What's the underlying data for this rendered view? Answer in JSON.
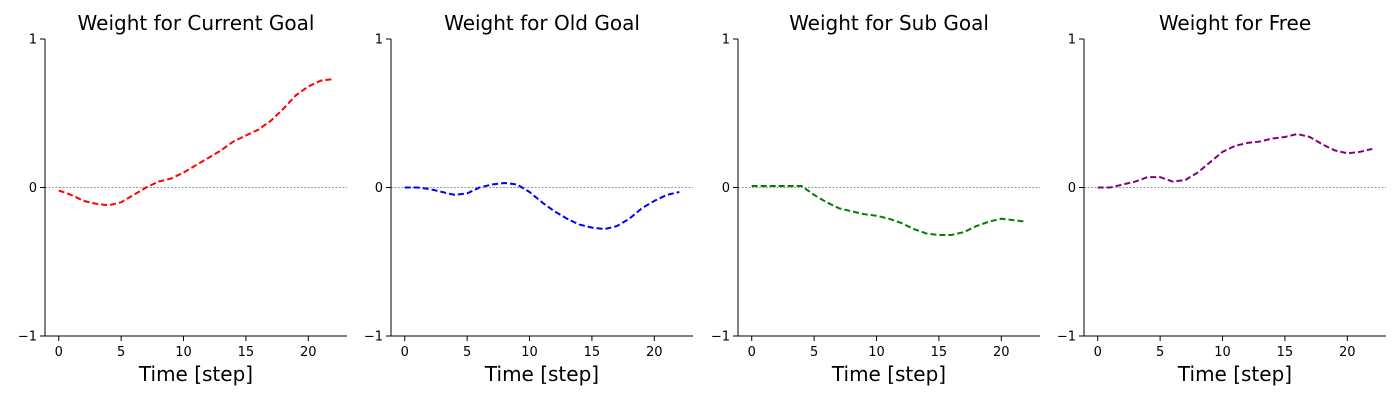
{
  "chart_data": [
    {
      "type": "line",
      "title": "Weight for Current Goal",
      "xlabel": "Time [step]",
      "ylabel": "",
      "xlim": [
        -1.1,
        23.1
      ],
      "ylim": [
        -1,
        1
      ],
      "xticks": [
        0,
        5,
        10,
        15,
        20
      ],
      "yticks": [
        -1,
        0,
        1
      ],
      "ytick_labels": [
        "−1",
        "0",
        "1"
      ],
      "reference_line": 0,
      "grid": false,
      "series": [
        {
          "color": "#ff0000",
          "line_style": "dashed",
          "x": [
            0,
            1,
            2,
            3,
            4,
            5,
            6,
            7,
            8,
            9,
            10,
            11,
            12,
            13,
            14,
            15,
            16,
            17,
            18,
            19,
            20,
            21,
            22
          ],
          "y": [
            -0.02,
            -0.05,
            -0.09,
            -0.11,
            -0.12,
            -0.1,
            -0.05,
            0.0,
            0.04,
            0.06,
            0.1,
            0.15,
            0.2,
            0.25,
            0.31,
            0.35,
            0.39,
            0.45,
            0.53,
            0.62,
            0.68,
            0.72,
            0.73
          ]
        }
      ]
    },
    {
      "type": "line",
      "title": "Weight for Old Goal",
      "xlabel": "Time [step]",
      "ylabel": "",
      "xlim": [
        -1.1,
        23.1
      ],
      "ylim": [
        -1,
        1
      ],
      "xticks": [
        0,
        5,
        10,
        15,
        20
      ],
      "yticks": [
        -1,
        0,
        1
      ],
      "ytick_labels": [
        "−1",
        "0",
        "1"
      ],
      "reference_line": 0,
      "grid": false,
      "series": [
        {
          "color": "#0000ff",
          "line_style": "dashed",
          "x": [
            0,
            1,
            2,
            3,
            4,
            5,
            6,
            7,
            8,
            9,
            10,
            11,
            12,
            13,
            14,
            15,
            16,
            17,
            18,
            19,
            20,
            21,
            22
          ],
          "y": [
            0.0,
            0.0,
            -0.01,
            -0.03,
            -0.05,
            -0.04,
            0.0,
            0.02,
            0.03,
            0.02,
            -0.03,
            -0.1,
            -0.16,
            -0.21,
            -0.25,
            -0.27,
            -0.28,
            -0.26,
            -0.21,
            -0.14,
            -0.09,
            -0.05,
            -0.03
          ]
        }
      ]
    },
    {
      "type": "line",
      "title": "Weight for Sub Goal",
      "xlabel": "Time [step]",
      "ylabel": "",
      "xlim": [
        -1.1,
        23.1
      ],
      "ylim": [
        -1,
        1
      ],
      "xticks": [
        0,
        5,
        10,
        15,
        20
      ],
      "yticks": [
        -1,
        0,
        1
      ],
      "ytick_labels": [
        "−1",
        "0",
        "1"
      ],
      "reference_line": 0,
      "grid": false,
      "series": [
        {
          "color": "#008000",
          "line_style": "dashed",
          "x": [
            0,
            1,
            2,
            3,
            4,
            5,
            6,
            7,
            8,
            9,
            10,
            11,
            12,
            13,
            14,
            15,
            16,
            17,
            18,
            19,
            20,
            21,
            22
          ],
          "y": [
            0.01,
            0.01,
            0.01,
            0.01,
            0.01,
            -0.05,
            -0.1,
            -0.14,
            -0.16,
            -0.18,
            -0.19,
            -0.21,
            -0.24,
            -0.28,
            -0.31,
            -0.32,
            -0.32,
            -0.3,
            -0.26,
            -0.23,
            -0.21,
            -0.22,
            -0.23
          ]
        }
      ]
    },
    {
      "type": "line",
      "title": "Weight for Free",
      "xlabel": "Time [step]",
      "ylabel": "",
      "xlim": [
        -1.1,
        23.1
      ],
      "ylim": [
        -1,
        1
      ],
      "xticks": [
        0,
        5,
        10,
        15,
        20
      ],
      "yticks": [
        -1,
        0,
        1
      ],
      "ytick_labels": [
        "−1",
        "0",
        "1"
      ],
      "reference_line": 0,
      "grid": false,
      "series": [
        {
          "color": "#800080",
          "line_style": "dashed",
          "x": [
            0,
            1,
            2,
            3,
            4,
            5,
            6,
            7,
            8,
            9,
            10,
            11,
            12,
            13,
            14,
            15,
            16,
            17,
            18,
            19,
            20,
            21,
            22
          ],
          "y": [
            0.0,
            0.0,
            0.02,
            0.04,
            0.07,
            0.07,
            0.04,
            0.05,
            0.1,
            0.17,
            0.24,
            0.28,
            0.3,
            0.31,
            0.33,
            0.34,
            0.36,
            0.34,
            0.29,
            0.25,
            0.23,
            0.24,
            0.26
          ]
        }
      ]
    }
  ]
}
